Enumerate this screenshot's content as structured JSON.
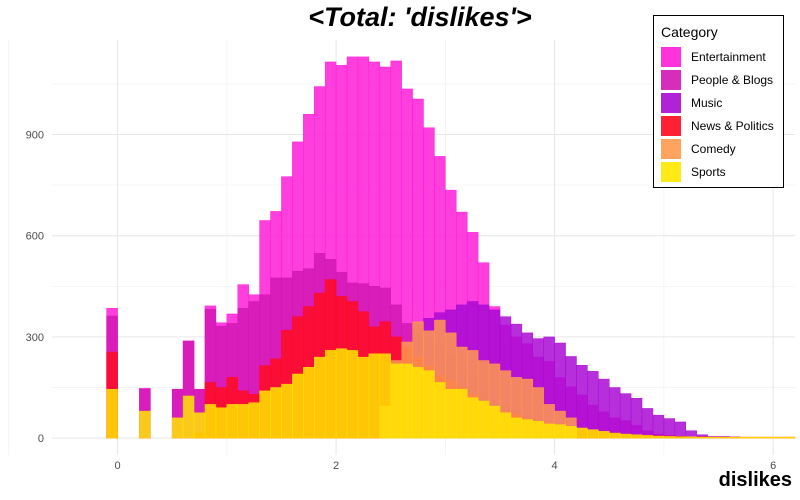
{
  "chart_data": {
    "type": "histogram",
    "title": "<Total: 'dislikes'>",
    "xlabel": "dislikes",
    "ylabel": "",
    "xlim": [
      -0.6,
      6.2
    ],
    "ylim": [
      -50,
      1180
    ],
    "x_ticks": [
      0,
      2,
      4,
      6
    ],
    "y_ticks": [
      0,
      300,
      600,
      900
    ],
    "grid": true,
    "stacked": false,
    "bin_width": 0.1,
    "legend": {
      "title": "Category",
      "position": "top-right"
    },
    "series": [
      {
        "name": "Entertainment",
        "color": "#FF1CD8",
        "x": [
          -0.05,
          0.25,
          0.55,
          0.65,
          0.75,
          0.85,
          0.95,
          1.05,
          1.15,
          1.25,
          1.35,
          1.45,
          1.55,
          1.65,
          1.75,
          1.85,
          1.95,
          2.05,
          2.15,
          2.25,
          2.35,
          2.45,
          2.55,
          2.65,
          2.75,
          2.85,
          2.95,
          3.05,
          3.15,
          3.25,
          3.35,
          3.45,
          3.55,
          3.65,
          3.75,
          3.85,
          3.95,
          4.05,
          4.15,
          4.25,
          4.35,
          4.45,
          4.55,
          4.65,
          4.75,
          4.85,
          4.95,
          5.05,
          5.15
        ],
        "y": [
          385,
          148,
          145,
          288,
          145,
          392,
          342,
          368,
          455,
          425,
          645,
          672,
          775,
          878,
          960,
          1042,
          1115,
          1105,
          1130,
          1130,
          1115,
          1100,
          1118,
          1035,
          1005,
          920,
          835,
          735,
          670,
          610,
          520,
          390,
          335,
          300,
          280,
          240,
          228,
          180,
          152,
          128,
          98,
          78,
          60,
          52,
          38,
          22,
          12,
          8,
          5
        ]
      },
      {
        "name": "People & Blogs",
        "color": "#D218B4",
        "x": [
          -0.05,
          0.25,
          0.55,
          0.65,
          0.75,
          0.85,
          0.95,
          1.05,
          1.15,
          1.25,
          1.35,
          1.45,
          1.55,
          1.65,
          1.75,
          1.85,
          1.95,
          2.05,
          2.15,
          2.25,
          2.35,
          2.45,
          2.55,
          2.65,
          2.75,
          2.85,
          2.95,
          3.05,
          3.15,
          3.25,
          3.35,
          3.45,
          3.55,
          3.65,
          3.75,
          3.85,
          3.95,
          4.05,
          4.15,
          4.25,
          4.35,
          4.45
        ],
        "y": [
          362,
          145,
          145,
          288,
          145,
          382,
          332,
          340,
          385,
          405,
          425,
          475,
          475,
          495,
          502,
          548,
          530,
          492,
          460,
          458,
          450,
          445,
          395,
          340,
          328,
          305,
          270,
          240,
          210,
          175,
          140,
          118,
          98,
          82,
          65,
          52,
          42,
          30,
          22,
          15,
          10,
          6
        ]
      },
      {
        "name": "Music",
        "color": "#A90AD4",
        "x": [
          2.75,
          2.85,
          2.95,
          3.05,
          3.15,
          3.25,
          3.35,
          3.45,
          3.55,
          3.65,
          3.75,
          3.85,
          3.95,
          4.05,
          4.15,
          4.25,
          4.35,
          4.45,
          4.55,
          4.65,
          4.75,
          4.85,
          4.95,
          5.05,
          5.15,
          5.25,
          5.35,
          5.45,
          5.55,
          5.65
        ],
        "y": [
          340,
          355,
          372,
          380,
          395,
          405,
          395,
          380,
          360,
          338,
          312,
          295,
          300,
          282,
          242,
          216,
          198,
          175,
          150,
          132,
          118,
          88,
          68,
          58,
          48,
          22,
          10,
          5,
          5,
          4
        ]
      },
      {
        "name": "News & Politics",
        "color": "#FF0A1E",
        "x": [
          -0.05,
          0.75,
          0.85,
          0.95,
          1.05,
          1.15,
          1.25,
          1.35,
          1.45,
          1.55,
          1.65,
          1.75,
          1.85,
          1.95,
          2.05,
          2.15,
          2.25,
          2.35,
          2.45,
          2.55,
          2.65,
          2.75,
          2.85,
          2.95,
          3.05,
          3.15,
          3.25,
          3.35,
          3.45,
          3.55,
          3.65,
          3.75,
          3.85,
          3.95,
          4.05,
          4.15,
          4.25,
          4.35,
          4.45,
          4.55,
          4.65,
          4.75,
          4.85,
          4.95,
          5.05,
          5.15,
          5.25,
          5.35,
          5.45,
          5.55,
          5.65,
          5.75,
          5.85,
          5.95,
          6.05,
          6.15
        ],
        "y": [
          255,
          15,
          165,
          150,
          180,
          140,
          130,
          215,
          235,
          320,
          360,
          390,
          430,
          470,
          420,
          405,
          375,
          330,
          345,
          300,
          270,
          240,
          215,
          185,
          170,
          150,
          130,
          110,
          95,
          80,
          68,
          58,
          50,
          42,
          35,
          30,
          26,
          22,
          18,
          15,
          12,
          10,
          8,
          7,
          6,
          5,
          4,
          4,
          3,
          3,
          3,
          3,
          3,
          3,
          3,
          3
        ]
      },
      {
        "name": "Comedy",
        "color": "#FF9A50",
        "x": [
          2.45,
          2.55,
          2.65,
          2.75,
          2.85,
          2.95,
          3.05,
          3.15,
          3.25,
          3.35,
          3.45,
          3.55,
          3.65,
          3.75,
          3.85,
          3.95,
          4.05,
          4.15
        ],
        "y": [
          95,
          230,
          285,
          345,
          318,
          350,
          312,
          270,
          260,
          230,
          220,
          200,
          180,
          175,
          150,
          100,
          80,
          60
        ]
      },
      {
        "name": "Sports",
        "color": "#FFE800",
        "x": [
          -0.05,
          0.25,
          0.55,
          0.65,
          0.75,
          0.85,
          0.95,
          1.05,
          1.15,
          1.25,
          1.35,
          1.45,
          1.55,
          1.65,
          1.75,
          1.85,
          1.95,
          2.05,
          2.15,
          2.25,
          2.35,
          2.45,
          2.55,
          2.65,
          2.75,
          2.85,
          2.95,
          3.05,
          3.15,
          3.25,
          3.35,
          3.45,
          3.55,
          3.65,
          3.75,
          3.85,
          3.95,
          4.05,
          4.15,
          4.25,
          4.35,
          4.45,
          4.55,
          4.65,
          4.75,
          4.85,
          4.95,
          5.05,
          5.15,
          5.25,
          5.35,
          5.45,
          5.55,
          5.65,
          5.75,
          5.85,
          5.95,
          6.05,
          6.15
        ],
        "y": [
          145,
          80,
          60,
          125,
          75,
          100,
          90,
          100,
          100,
          105,
          140,
          150,
          160,
          190,
          210,
          240,
          260,
          265,
          260,
          240,
          250,
          250,
          220,
          220,
          210,
          200,
          165,
          145,
          145,
          120,
          110,
          95,
          75,
          60,
          55,
          50,
          42,
          40,
          35,
          30,
          25,
          20,
          15,
          12,
          10,
          8,
          6,
          5,
          4,
          4,
          3,
          3,
          3,
          3,
          3,
          3,
          3,
          3,
          3
        ]
      }
    ]
  }
}
